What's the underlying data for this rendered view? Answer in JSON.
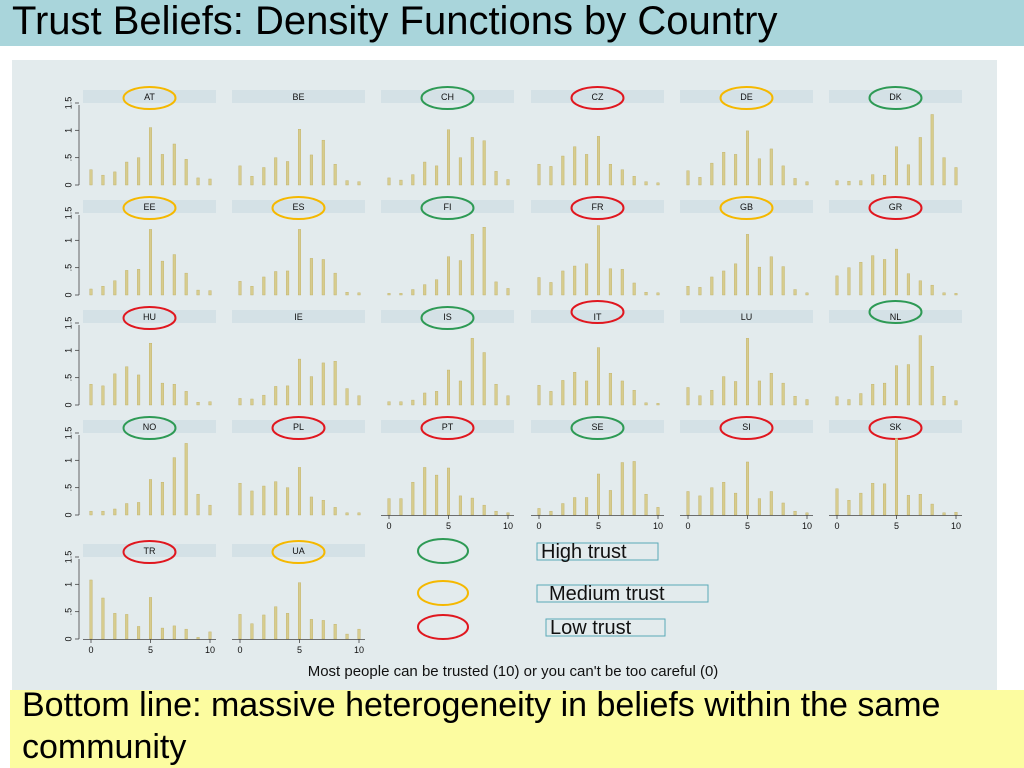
{
  "title": "Trust Beliefs:  Density Functions by Country",
  "bottom_line": "Bottom line: massive heterogeneity in beliefs within the same community",
  "colors": {
    "high": "#2e9a55",
    "medium": "#f5b800",
    "low": "#e0171f",
    "bar_fill": "#d7cc8e",
    "bar_stroke": "#bfae62",
    "strip": "#d4e1e6"
  },
  "legend": [
    {
      "label": "High trust",
      "category": "high"
    },
    {
      "label": "Medium trust",
      "category": "medium"
    },
    {
      "label": "Low trust",
      "category": "low"
    }
  ],
  "chart_data": {
    "type": "bar",
    "xlabel": "Most people can be trusted (10) or you can't be too careful (0)",
    "ylabel": "",
    "x": [
      0,
      1,
      2,
      3,
      4,
      5,
      6,
      7,
      8,
      9,
      10
    ],
    "xticks": [
      "0",
      "5",
      "10"
    ],
    "yticks": [
      "0",
      ".5",
      "1",
      "1.5"
    ],
    "xlim": [
      0,
      10
    ],
    "ylim": [
      0,
      1.5
    ],
    "panels": [
      {
        "name": "AT",
        "trust": "medium",
        "values": [
          0.28,
          0.18,
          0.24,
          0.42,
          0.5,
          1.05,
          0.56,
          0.75,
          0.47,
          0.13,
          0.11
        ]
      },
      {
        "name": "BE",
        "trust": "none",
        "values": [
          0.35,
          0.16,
          0.32,
          0.5,
          0.43,
          1.02,
          0.55,
          0.82,
          0.38,
          0.08,
          0.06
        ]
      },
      {
        "name": "CH",
        "trust": "high",
        "values": [
          0.13,
          0.09,
          0.19,
          0.42,
          0.35,
          1.01,
          0.5,
          0.87,
          0.81,
          0.25,
          0.1
        ]
      },
      {
        "name": "CZ",
        "trust": "low",
        "values": [
          0.38,
          0.34,
          0.53,
          0.7,
          0.56,
          0.89,
          0.38,
          0.28,
          0.16,
          0.06,
          0.04
        ]
      },
      {
        "name": "DE",
        "trust": "medium",
        "values": [
          0.26,
          0.14,
          0.4,
          0.6,
          0.56,
          0.99,
          0.48,
          0.66,
          0.35,
          0.12,
          0.06
        ]
      },
      {
        "name": "DK",
        "trust": "high",
        "values": [
          0.08,
          0.07,
          0.08,
          0.19,
          0.18,
          0.7,
          0.37,
          0.87,
          1.29,
          0.5,
          0.32
        ]
      },
      {
        "name": "EE",
        "trust": "medium",
        "values": [
          0.11,
          0.16,
          0.26,
          0.45,
          0.47,
          1.2,
          0.62,
          0.74,
          0.4,
          0.09,
          0.08
        ]
      },
      {
        "name": "ES",
        "trust": "medium",
        "values": [
          0.25,
          0.16,
          0.33,
          0.43,
          0.44,
          1.2,
          0.67,
          0.65,
          0.4,
          0.05,
          0.04
        ]
      },
      {
        "name": "FI",
        "trust": "high",
        "values": [
          0.03,
          0.03,
          0.1,
          0.19,
          0.28,
          0.7,
          0.63,
          1.11,
          1.24,
          0.24,
          0.12
        ]
      },
      {
        "name": "FR",
        "trust": "low",
        "values": [
          0.32,
          0.23,
          0.44,
          0.53,
          0.57,
          1.27,
          0.48,
          0.47,
          0.22,
          0.05,
          0.04
        ]
      },
      {
        "name": "GB",
        "trust": "medium",
        "values": [
          0.16,
          0.14,
          0.33,
          0.44,
          0.57,
          1.11,
          0.51,
          0.7,
          0.52,
          0.1,
          0.04
        ]
      },
      {
        "name": "GR",
        "trust": "low",
        "values": [
          0.35,
          0.5,
          0.6,
          0.72,
          0.65,
          0.84,
          0.39,
          0.26,
          0.18,
          0.04,
          0.03
        ]
      },
      {
        "name": "HU",
        "trust": "low",
        "values": [
          0.38,
          0.35,
          0.57,
          0.7,
          0.55,
          1.13,
          0.4,
          0.38,
          0.25,
          0.05,
          0.06
        ]
      },
      {
        "name": "IE",
        "trust": "none",
        "values": [
          0.12,
          0.11,
          0.18,
          0.34,
          0.35,
          0.84,
          0.52,
          0.77,
          0.8,
          0.3,
          0.17
        ]
      },
      {
        "name": "IS",
        "trust": "high",
        "values": [
          0.06,
          0.06,
          0.09,
          0.22,
          0.25,
          0.64,
          0.44,
          1.22,
          0.96,
          0.38,
          0.17
        ]
      },
      {
        "name": "IT",
        "trust": "low",
        "values": [
          0.36,
          0.25,
          0.45,
          0.6,
          0.44,
          1.05,
          0.58,
          0.44,
          0.27,
          0.04,
          0.03
        ]
      },
      {
        "name": "LU",
        "trust": "none",
        "values": [
          0.32,
          0.17,
          0.27,
          0.52,
          0.43,
          1.22,
          0.44,
          0.58,
          0.4,
          0.16,
          0.1
        ]
      },
      {
        "name": "NL",
        "trust": "high",
        "values": [
          0.15,
          0.1,
          0.21,
          0.38,
          0.4,
          0.72,
          0.74,
          1.27,
          0.71,
          0.16,
          0.08
        ]
      },
      {
        "name": "NO",
        "trust": "high",
        "values": [
          0.07,
          0.07,
          0.11,
          0.21,
          0.23,
          0.65,
          0.6,
          1.05,
          1.31,
          0.38,
          0.18
        ]
      },
      {
        "name": "PL",
        "trust": "low",
        "values": [
          0.58,
          0.44,
          0.53,
          0.61,
          0.5,
          0.87,
          0.33,
          0.27,
          0.14,
          0.04,
          0.04
        ]
      },
      {
        "name": "PT",
        "trust": "low",
        "values": [
          0.3,
          0.3,
          0.6,
          0.87,
          0.73,
          0.86,
          0.35,
          0.31,
          0.18,
          0.07,
          0.04
        ]
      },
      {
        "name": "SE",
        "trust": "high",
        "values": [
          0.12,
          0.07,
          0.21,
          0.32,
          0.32,
          0.75,
          0.45,
          0.96,
          0.98,
          0.38,
          0.14
        ]
      },
      {
        "name": "SI",
        "trust": "low",
        "values": [
          0.43,
          0.35,
          0.5,
          0.6,
          0.4,
          0.97,
          0.3,
          0.43,
          0.22,
          0.07,
          0.04
        ]
      },
      {
        "name": "SK",
        "trust": "low",
        "values": [
          0.48,
          0.27,
          0.4,
          0.58,
          0.57,
          1.4,
          0.36,
          0.38,
          0.2,
          0.04,
          0.05
        ]
      },
      {
        "name": "TR",
        "trust": "low",
        "values": [
          1.08,
          0.75,
          0.47,
          0.45,
          0.23,
          0.76,
          0.2,
          0.24,
          0.18,
          0.03,
          0.13
        ]
      },
      {
        "name": "UA",
        "trust": "medium",
        "values": [
          0.45,
          0.28,
          0.44,
          0.59,
          0.47,
          1.03,
          0.36,
          0.34,
          0.27,
          0.09,
          0.18
        ]
      }
    ]
  }
}
